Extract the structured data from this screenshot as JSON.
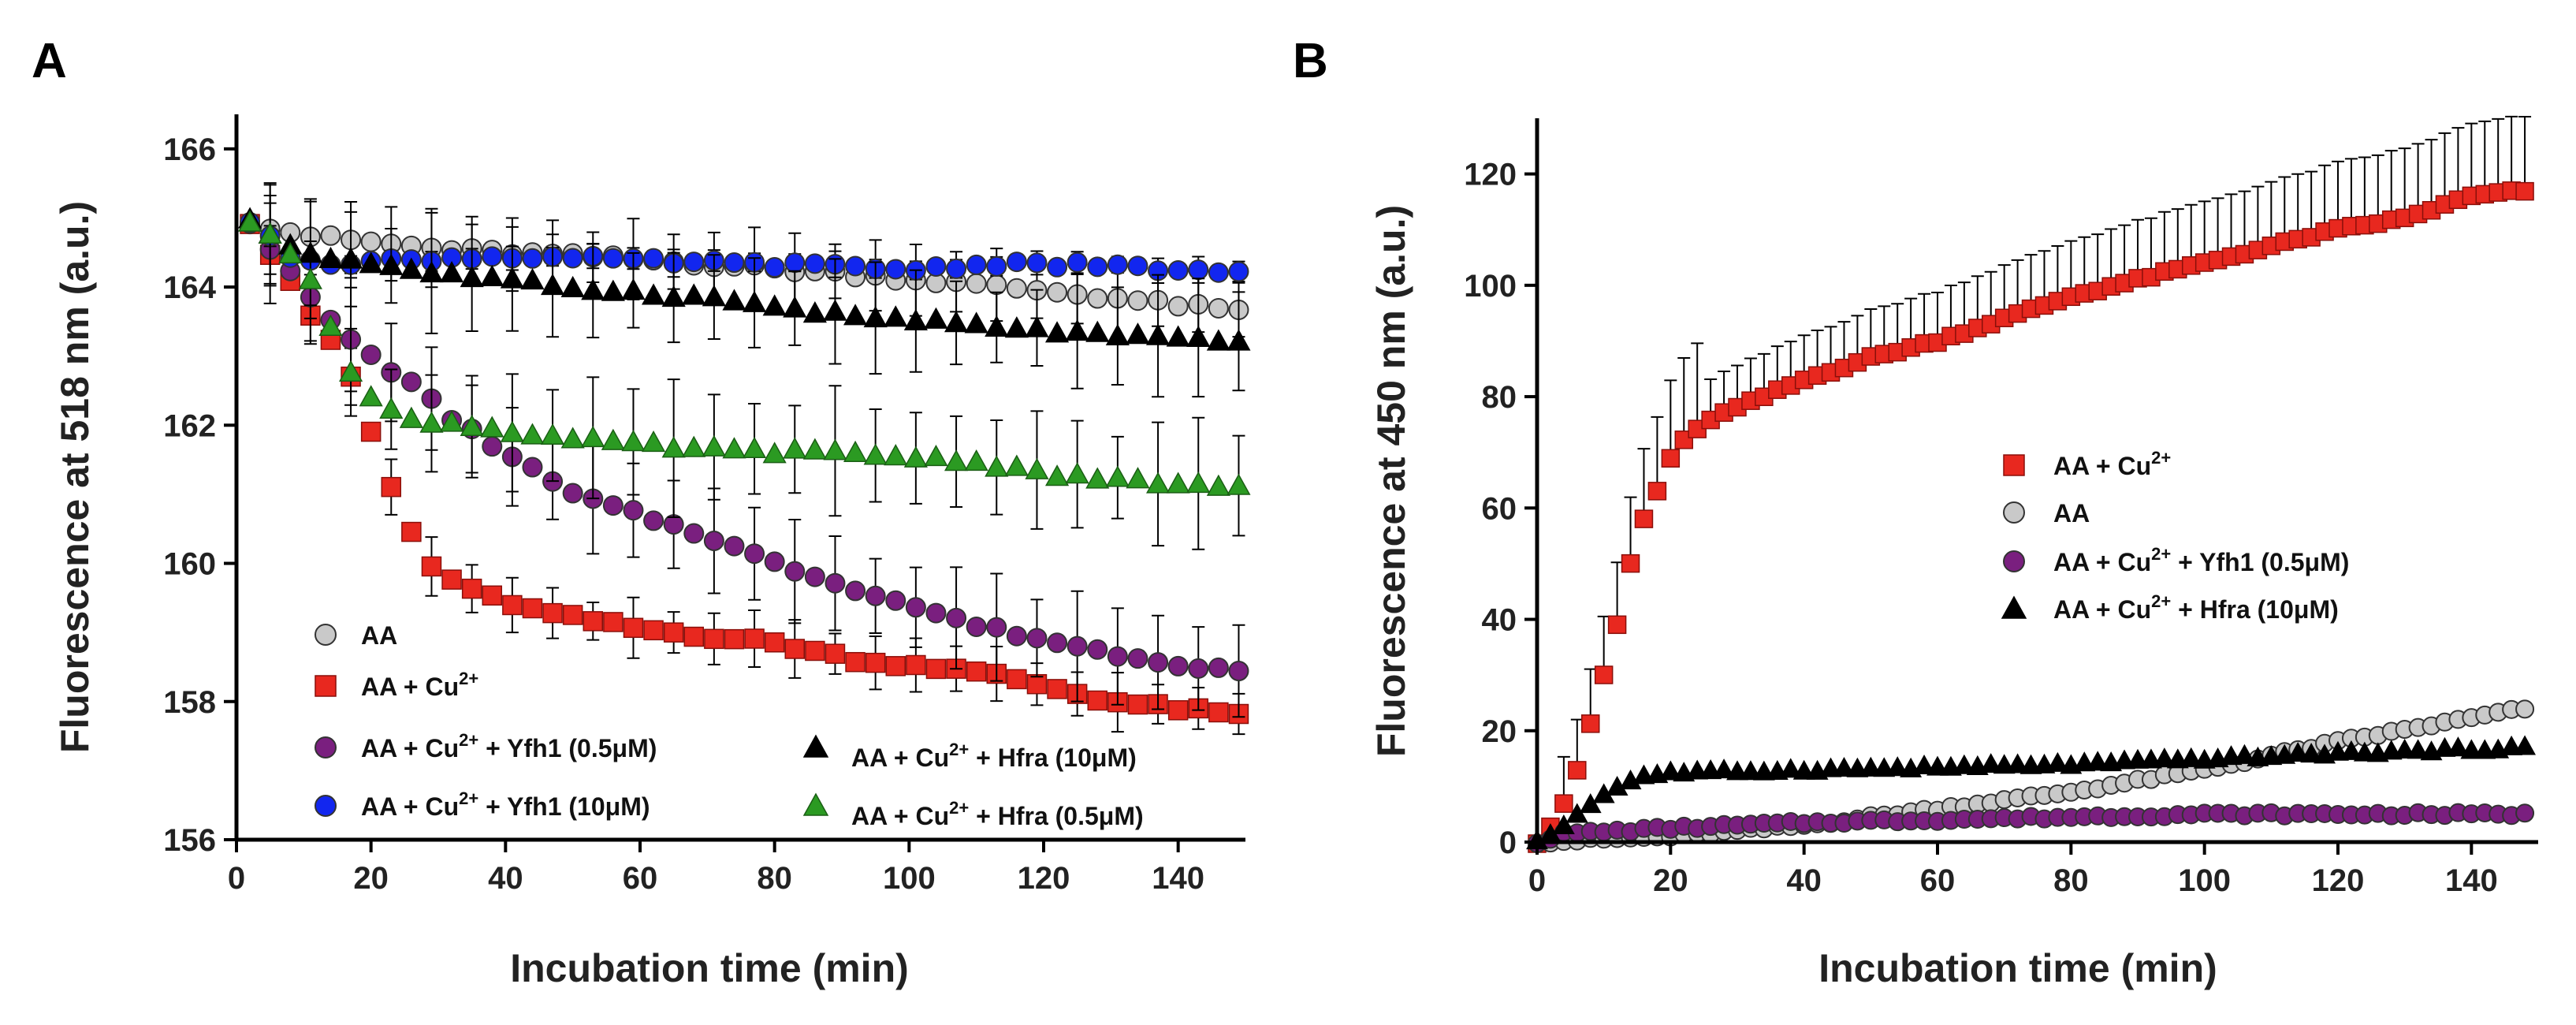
{
  "colors": {
    "aa": "#c9c9c9",
    "cu": "#e8281f",
    "yfh_low": "#7a1f7f",
    "yfh_high": "#1226ef",
    "hfra_high": "#000000",
    "hfra_low": "#2b9a22",
    "axis": "#000000"
  },
  "chart_data": [
    {
      "panel": "A",
      "type": "scatter",
      "xlabel": "Incubation time (min)",
      "ylabel": "Fluorescence at 518 nm (a.u.)",
      "xlim": [
        0,
        150
      ],
      "ylim": [
        156,
        166.5
      ],
      "xticks": [
        0,
        20,
        40,
        60,
        80,
        100,
        120,
        140
      ],
      "yticks": [
        156,
        158,
        160,
        162,
        164,
        166
      ],
      "x_start": 2,
      "x_step": 3,
      "x_end": 149,
      "error_bar_every": 2,
      "legend_placement": "bottom-left",
      "series": [
        {
          "key": "aa",
          "marker": "circle",
          "color_key": "aa",
          "legend": {
            "pre": "AA",
            "sup": "",
            "post": ""
          },
          "curve": [
            [
              2,
              164.95
            ],
            [
              10,
              164.75
            ],
            [
              30,
              164.55
            ],
            [
              60,
              164.4
            ],
            [
              90,
              164.2
            ],
            [
              120,
              163.95
            ],
            [
              149,
              163.65
            ]
          ],
          "err": 0.6
        },
        {
          "key": "cu",
          "marker": "square",
          "color_key": "cu",
          "legend": {
            "pre": "AA + Cu",
            "sup": "2+",
            "post": ""
          },
          "curve": [
            [
              2,
              164.95
            ],
            [
              5,
              164.5
            ],
            [
              8,
              164.1
            ],
            [
              11,
              163.6
            ],
            [
              14,
              163.2
            ],
            [
              17,
              162.7
            ],
            [
              20,
              161.9
            ],
            [
              23,
              161.1
            ],
            [
              26,
              160.45
            ],
            [
              29,
              159.95
            ],
            [
              35,
              159.6
            ],
            [
              45,
              159.3
            ],
            [
              60,
              159.05
            ],
            [
              80,
              158.85
            ],
            [
              95,
              158.55
            ],
            [
              100,
              158.55
            ],
            [
              115,
              158.35
            ],
            [
              130,
              158.0
            ],
            [
              149,
              157.8
            ]
          ],
          "err": 0.45
        },
        {
          "key": "yfh_low",
          "marker": "circle",
          "color_key": "yfh_low",
          "legend": {
            "pre": "AA + Cu",
            "sup": "2+",
            "post": " + Yfh1 (0.5μM)"
          },
          "curve": [
            [
              2,
              164.95
            ],
            [
              8,
              164.2
            ],
            [
              14,
              163.5
            ],
            [
              20,
              163.0
            ],
            [
              26,
              162.6
            ],
            [
              32,
              162.1
            ],
            [
              40,
              161.6
            ],
            [
              50,
              161.0
            ],
            [
              60,
              160.7
            ],
            [
              70,
              160.4
            ],
            [
              80,
              160.0
            ],
            [
              90,
              159.7
            ],
            [
              100,
              159.4
            ],
            [
              110,
              159.1
            ],
            [
              120,
              158.9
            ],
            [
              130,
              158.7
            ],
            [
              140,
              158.55
            ],
            [
              149,
              158.45
            ]
          ],
          "err": 0.8
        },
        {
          "key": "yfh_high",
          "marker": "circle",
          "color_key": "yfh_high",
          "legend": {
            "pre": "AA + Cu",
            "sup": "2+",
            "post": " + Yfh1 (10μM)"
          },
          "curve": [
            [
              2,
              164.95
            ],
            [
              8,
              164.45
            ],
            [
              15,
              164.35
            ],
            [
              40,
              164.45
            ],
            [
              70,
              164.35
            ],
            [
              90,
              164.3
            ],
            [
              100,
              164.25
            ],
            [
              115,
              164.35
            ],
            [
              130,
              164.3
            ],
            [
              149,
              164.2
            ]
          ],
          "err": 0.2
        },
        {
          "key": "hfra_high",
          "marker": "triangle",
          "color_key": "hfra_high",
          "legend": {
            "pre": "AA + Cu",
            "sup": "2+",
            "post": " + Hfra (10μM)"
          },
          "curve": [
            [
              2,
              164.95
            ],
            [
              10,
              164.5
            ],
            [
              30,
              164.2
            ],
            [
              50,
              164.0
            ],
            [
              70,
              163.85
            ],
            [
              90,
              163.6
            ],
            [
              110,
              163.45
            ],
            [
              130,
              163.3
            ],
            [
              149,
              163.2
            ]
          ],
          "err": 0.9
        },
        {
          "key": "hfra_low",
          "marker": "triangle",
          "color_key": "hfra_low",
          "legend": {
            "pre": "AA + Cu",
            "sup": "2+",
            "post": " + Hfra (0.5μM)"
          },
          "curve": [
            [
              2,
              164.95
            ],
            [
              8,
              164.5
            ],
            [
              12,
              164.0
            ],
            [
              15,
              163.2
            ],
            [
              18,
              162.6
            ],
            [
              21,
              162.3
            ],
            [
              25,
              162.1
            ],
            [
              35,
              162.0
            ],
            [
              50,
              161.8
            ],
            [
              70,
              161.65
            ],
            [
              90,
              161.6
            ],
            [
              108,
              161.5
            ],
            [
              125,
              161.25
            ],
            [
              149,
              161.1
            ]
          ],
          "err": 1.0
        }
      ]
    },
    {
      "panel": "B",
      "type": "scatter",
      "xlabel": "Incubation time (min)",
      "ylabel": "Fluorescence at 450 nm (a.u.)",
      "xlim": [
        0,
        150
      ],
      "ylim": [
        0,
        130
      ],
      "xticks": [
        0,
        20,
        40,
        60,
        80,
        100,
        120,
        140
      ],
      "yticks": [
        0,
        20,
        40,
        60,
        80,
        100,
        120
      ],
      "x_start": 0,
      "x_step": 2,
      "x_end": 148,
      "error_bar_every": 1,
      "legend_placement": "right",
      "series": [
        {
          "key": "cu",
          "marker": "square",
          "color_key": "cu",
          "legend": {
            "pre": "AA + Cu",
            "sup": "2+",
            "post": ""
          },
          "curve": [
            [
              0,
              0
            ],
            [
              2,
              3
            ],
            [
              4,
              7
            ],
            [
              6,
              13
            ],
            [
              8,
              21
            ],
            [
              10,
              30
            ],
            [
              12,
              39
            ],
            [
              14,
              50
            ],
            [
              16,
              58
            ],
            [
              18,
              63
            ],
            [
              20,
              69
            ],
            [
              22,
              72
            ],
            [
              26,
              76
            ],
            [
              30,
              78
            ],
            [
              40,
              83
            ],
            [
              50,
              87
            ],
            [
              60,
              90
            ],
            [
              70,
              94
            ],
            [
              80,
              98
            ],
            [
              90,
              101
            ],
            [
              100,
              104
            ],
            [
              110,
              107
            ],
            [
              120,
              110
            ],
            [
              130,
              112
            ],
            [
              140,
              116
            ],
            [
              148,
              117
            ]
          ],
          "err_mode": "growing"
        },
        {
          "key": "aa",
          "marker": "circle",
          "color_key": "aa",
          "legend": {
            "pre": "AA",
            "sup": "",
            "post": ""
          },
          "curve": [
            [
              0,
              0
            ],
            [
              20,
              1
            ],
            [
              40,
              3
            ],
            [
              60,
              6
            ],
            [
              80,
              9
            ],
            [
              100,
              13
            ],
            [
              120,
              18
            ],
            [
              148,
              24
            ]
          ],
          "err_mode": "none"
        },
        {
          "key": "yfh_low",
          "marker": "circle",
          "color_key": "yfh_low",
          "legend": {
            "pre": "AA + Cu",
            "sup": "2+",
            "post": " + Yfh1 (0.5μM)"
          },
          "curve": [
            [
              0,
              0
            ],
            [
              4,
              1.5
            ],
            [
              20,
              2.5
            ],
            [
              40,
              3.5
            ],
            [
              60,
              4
            ],
            [
              80,
              4.5
            ],
            [
              100,
              5
            ],
            [
              120,
              5
            ],
            [
              148,
              5
            ]
          ],
          "err_mode": "none"
        },
        {
          "key": "hfra_high",
          "marker": "triangle",
          "color_key": "hfra_high",
          "legend": {
            "pre": "AA + Cu",
            "sup": "2+",
            "post": " + Hfra (10μM)"
          },
          "curve": [
            [
              0,
              0
            ],
            [
              4,
              3
            ],
            [
              8,
              7
            ],
            [
              12,
              10
            ],
            [
              16,
              12
            ],
            [
              20,
              12.5
            ],
            [
              40,
              13
            ],
            [
              60,
              13.5
            ],
            [
              80,
              14
            ],
            [
              100,
              15
            ],
            [
              120,
              16
            ],
            [
              148,
              17
            ]
          ],
          "err_mode": "none"
        }
      ]
    }
  ]
}
